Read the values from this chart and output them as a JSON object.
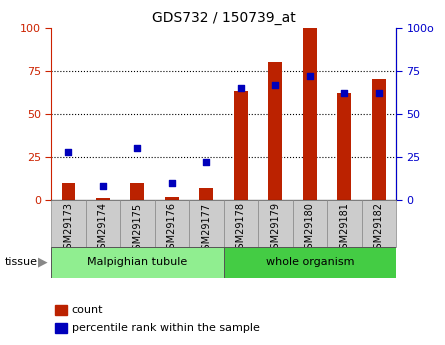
{
  "title": "GDS732 / 150739_at",
  "samples": [
    "GSM29173",
    "GSM29174",
    "GSM29175",
    "GSM29176",
    "GSM29177",
    "GSM29178",
    "GSM29179",
    "GSM29180",
    "GSM29181",
    "GSM29182"
  ],
  "counts": [
    10,
    1,
    10,
    2,
    7,
    63,
    80,
    100,
    62,
    70
  ],
  "percentiles": [
    28,
    8,
    30,
    10,
    22,
    65,
    67,
    72,
    62,
    62
  ],
  "tissue_groups": [
    {
      "label": "Malpighian tubule",
      "start": 0,
      "end": 5,
      "color": "#90ee90"
    },
    {
      "label": "whole organism",
      "start": 5,
      "end": 10,
      "color": "#44cc44"
    }
  ],
  "bar_color": "#bb2200",
  "dot_color": "#0000bb",
  "ylim": [
    0,
    100
  ],
  "yticks": [
    0,
    25,
    50,
    75,
    100
  ],
  "tick_label_color_left": "#cc2200",
  "tick_label_color_right": "#0000cc",
  "figsize": [
    4.45,
    3.45
  ],
  "dpi": 100
}
